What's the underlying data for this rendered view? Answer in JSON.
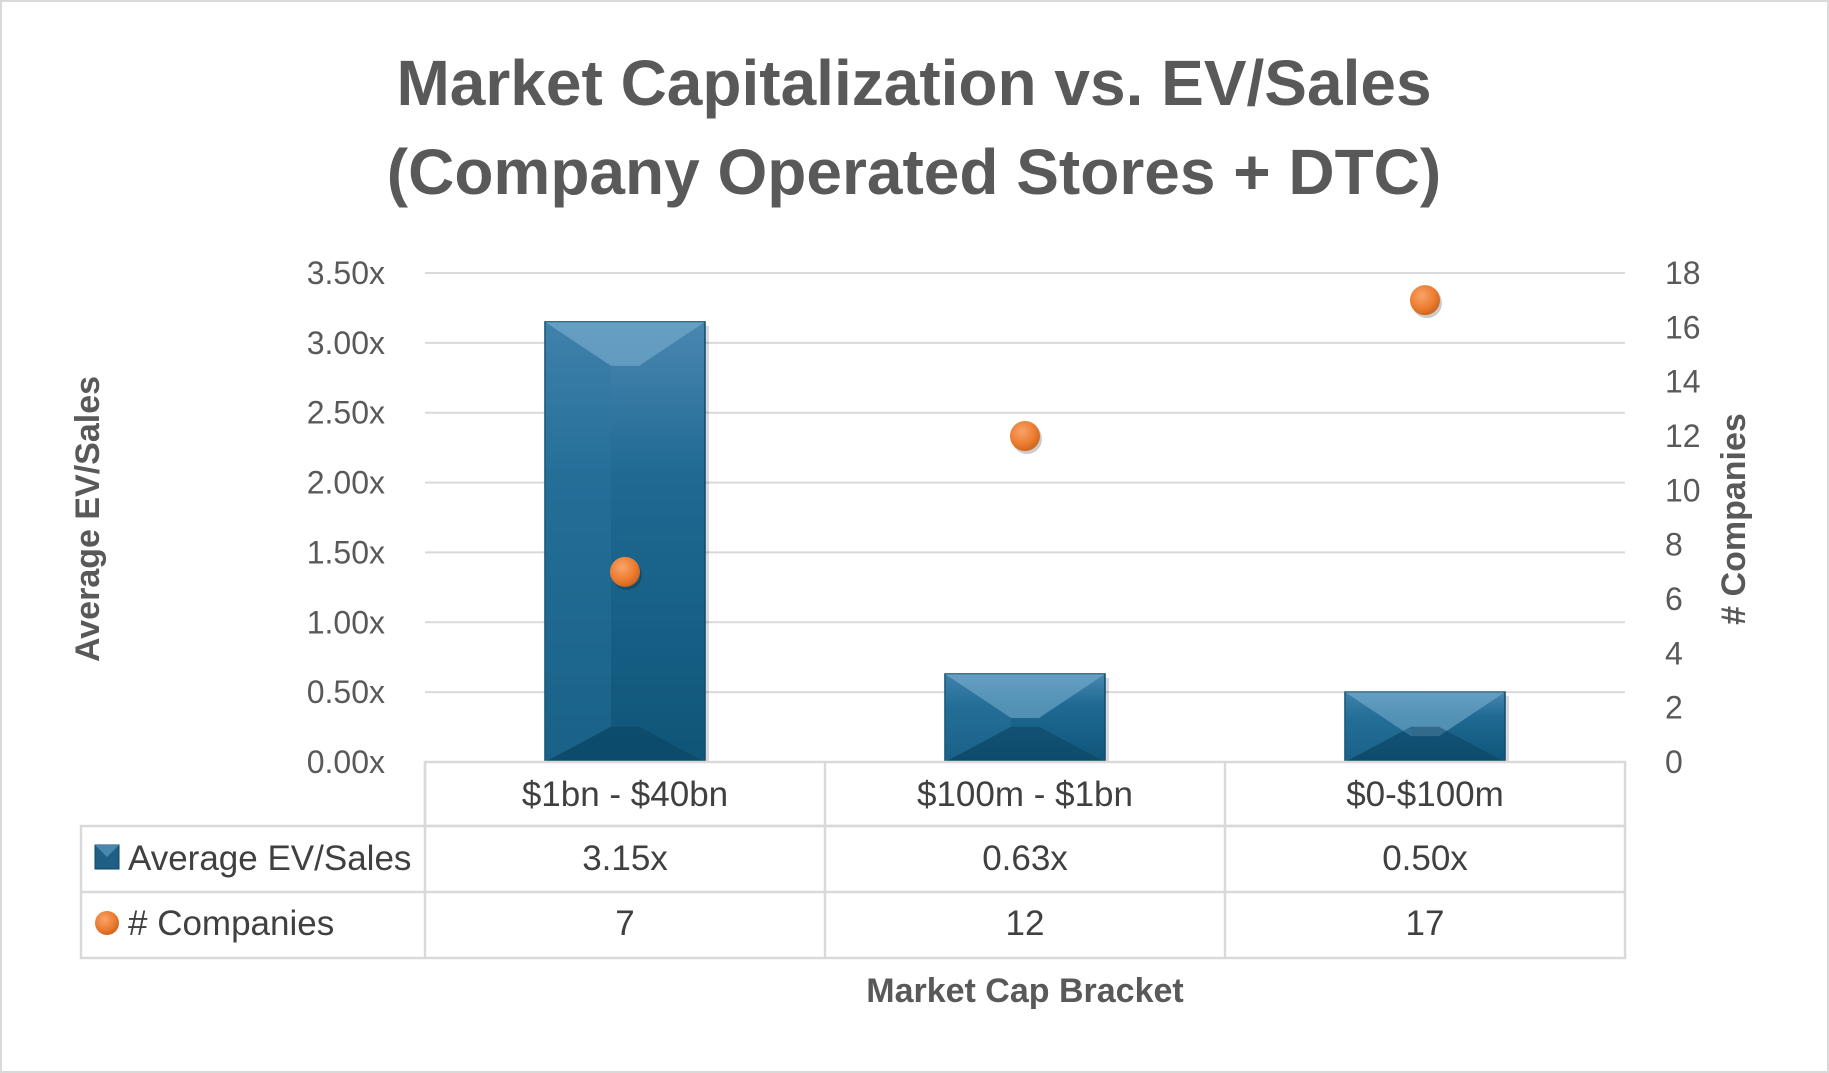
{
  "chart_data": {
    "type": "bar",
    "title": [
      "Market Capitalization vs. EV/Sales",
      "(Company Operated Stores + DTC)"
    ],
    "xlabel": "Market Cap Bracket",
    "ylabel": "Average EV/Sales",
    "y2label": "# Companies",
    "categories": [
      "$1bn - $40bn",
      "$100m - $1bn",
      "$0-$100m"
    ],
    "ylim": [
      0,
      3.5
    ],
    "y_ticks": [
      "0.00x",
      "0.50x",
      "1.00x",
      "1.50x",
      "2.00x",
      "2.50x",
      "3.00x",
      "3.50x"
    ],
    "y2lim": [
      0,
      18
    ],
    "y2_ticks": [
      "0",
      "2",
      "4",
      "6",
      "8",
      "10",
      "12",
      "14",
      "16",
      "18"
    ],
    "grid": true,
    "legend": "data-table",
    "series": [
      {
        "name": "Average EV/Sales",
        "type": "bar",
        "axis": "left",
        "values": [
          3.15,
          0.63,
          0.5
        ],
        "labels": [
          "3.15x",
          "0.63x",
          "0.50x"
        ],
        "color": "#1f5f85"
      },
      {
        "name": "# Companies",
        "type": "scatter",
        "axis": "right",
        "values": [
          7,
          12,
          17
        ],
        "labels": [
          "7",
          "12",
          "17"
        ],
        "color": "#ed7d31"
      }
    ]
  }
}
